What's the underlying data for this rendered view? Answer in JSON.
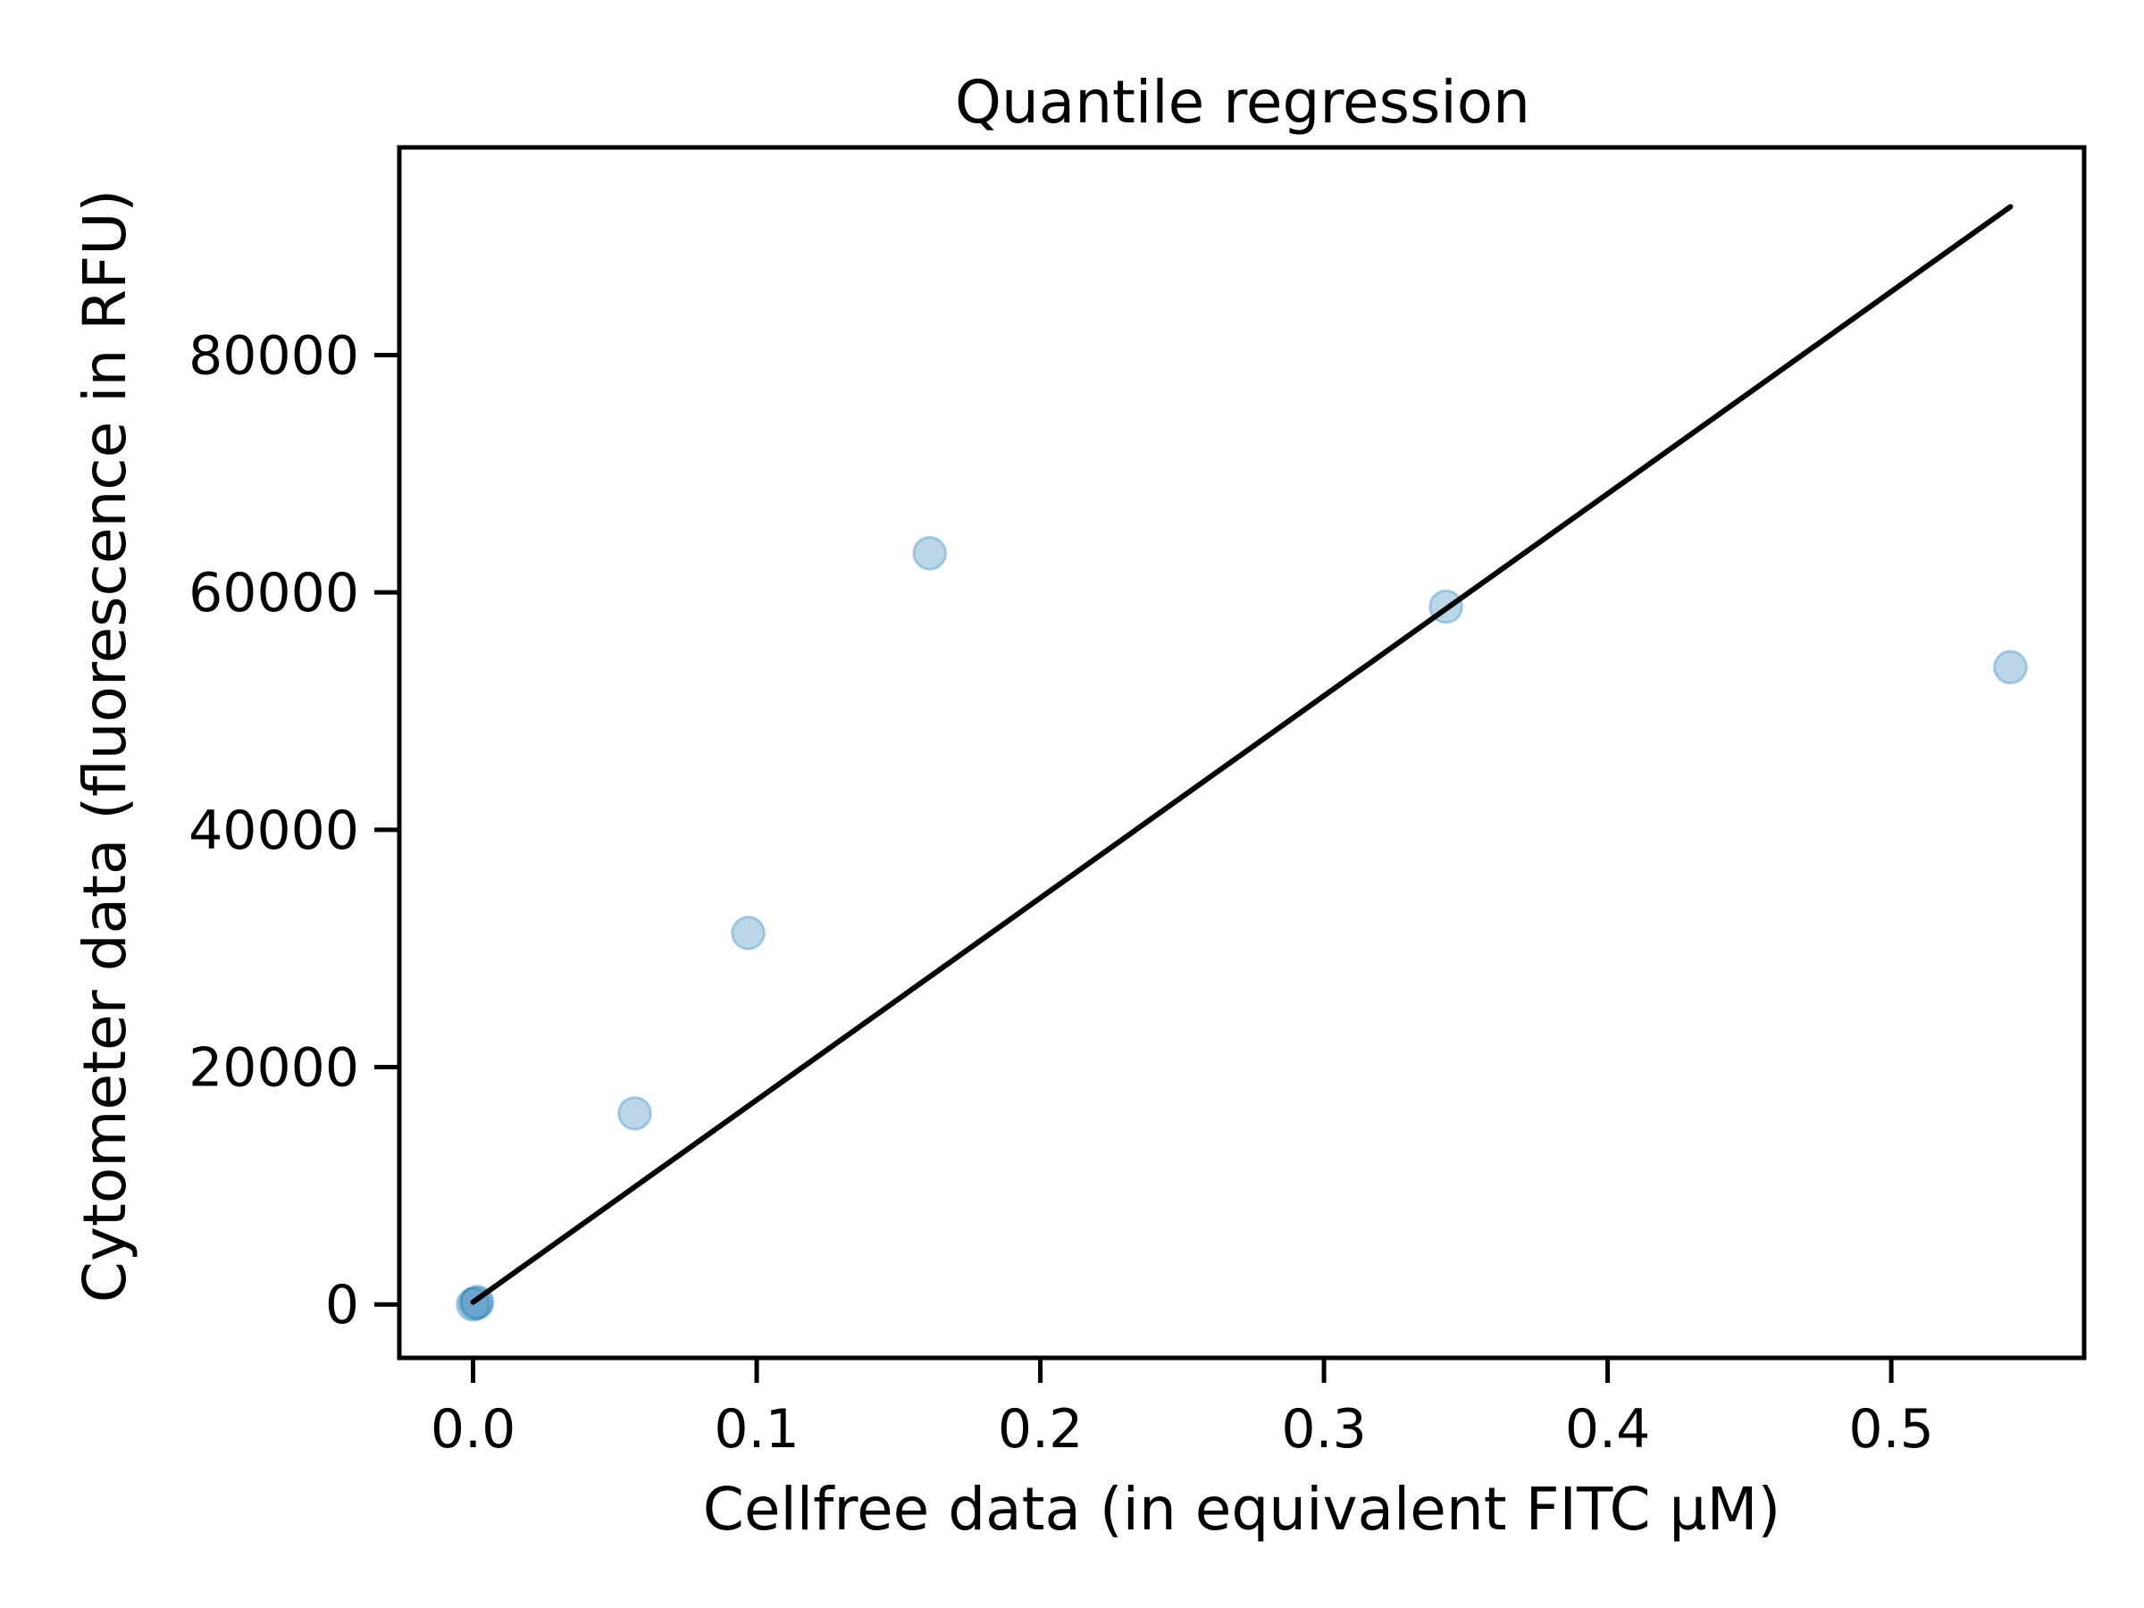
{
  "chart_data": {
    "type": "scatter",
    "title": "Quantile regression",
    "xlabel": "Cellfree data (in equivalent FITC µM)",
    "ylabel": "Cytometer data (fluorescence in RFU)",
    "xlim": [
      -0.026,
      0.568
    ],
    "ylim": [
      -4500,
      97500
    ],
    "grid": false,
    "x_ticks": [
      0.0,
      0.1,
      0.2,
      0.3,
      0.4,
      0.5
    ],
    "x_tick_labels": [
      "0.0",
      "0.1",
      "0.2",
      "0.3",
      "0.4",
      "0.5"
    ],
    "y_ticks": [
      0,
      20000,
      40000,
      60000,
      80000
    ],
    "y_tick_labels": [
      "0",
      "20000",
      "40000",
      "60000",
      "80000"
    ],
    "series": [
      {
        "kind": "points",
        "color": "#1f77b4",
        "opacity": 0.3,
        "points": [
          {
            "x": 0.0,
            "y": 0
          },
          {
            "x": 0.001,
            "y": 100
          },
          {
            "x": 0.0015,
            "y": 200
          },
          {
            "x": 0.057,
            "y": 16100
          },
          {
            "x": 0.097,
            "y": 31300
          },
          {
            "x": 0.161,
            "y": 63300
          },
          {
            "x": 0.343,
            "y": 58800
          },
          {
            "x": 0.542,
            "y": 53700
          }
        ]
      },
      {
        "kind": "line",
        "color": "#000000",
        "points": [
          {
            "x": 0.0,
            "y": 200
          },
          {
            "x": 0.542,
            "y": 92500
          }
        ]
      }
    ]
  }
}
